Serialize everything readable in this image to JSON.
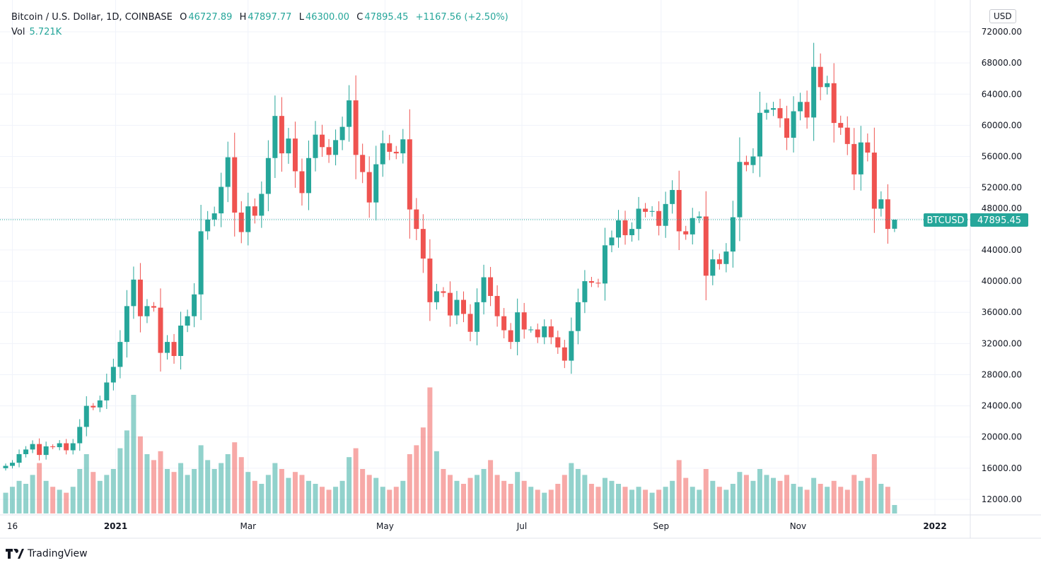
{
  "header": {
    "symbol": "Bitcoin / U.S. Dollar, 1D, COINBASE",
    "o_label": "O",
    "open": "46727.89",
    "h_label": "H",
    "high": "47897.77",
    "l_label": "L",
    "low": "46300.00",
    "c_label": "C",
    "close": "47895.45",
    "change": "+1167.56 (+2.50%)",
    "vol_label": "Vol",
    "vol_value": "5.721K"
  },
  "currency_button": "USD",
  "price_tag": {
    "symbol": "BTCUSD",
    "value": "47895.45"
  },
  "brand": "TradingView",
  "colors": {
    "up": "#26a69a",
    "down": "#ef5350",
    "grid": "#f0f3fa"
  },
  "chart_data": {
    "type": "candlestick",
    "title": "Bitcoin / U.S. Dollar, 1D, COINBASE",
    "interval_days": 3,
    "start_date": "2020-11-13",
    "first_open": 16000,
    "last_candle": {
      "open": 46727.89,
      "high": 47897.77,
      "low": 46300.0,
      "close": 47895.45
    },
    "ylim": [
      10000,
      74000
    ],
    "y_ticks": [
      "72000.00",
      "68000.00",
      "64000.00",
      "60000.00",
      "56000.00",
      "52000.00",
      "48000.00",
      "44000.00",
      "40000.00",
      "36000.00",
      "32000.00",
      "28000.00",
      "24000.00",
      "20000.00",
      "16000.00",
      "12000.00"
    ],
    "y_tick_values": [
      72000,
      68000,
      64000,
      60000,
      56000,
      52000,
      48000,
      44000,
      40000,
      36000,
      32000,
      28000,
      24000,
      20000,
      16000,
      12000
    ],
    "x_ticks": [
      {
        "label": "16",
        "day": 3
      },
      {
        "label": "2021",
        "day": 49
      },
      {
        "label": "Mar",
        "day": 108
      },
      {
        "label": "May",
        "day": 169
      },
      {
        "label": "Jul",
        "day": 230
      },
      {
        "label": "Sep",
        "day": 292
      },
      {
        "label": "Nov",
        "day": 353
      },
      {
        "label": "2022",
        "day": 414
      }
    ],
    "closes": [
      16300,
      16700,
      17800,
      18400,
      19100,
      17700,
      18800,
      18700,
      19200,
      18300,
      19200,
      21300,
      24000,
      23800,
      24700,
      27000,
      29000,
      32200,
      36800,
      40200,
      35500,
      36800,
      36600,
      30800,
      32200,
      30400,
      34300,
      35500,
      38300,
      46400,
      47900,
      48700,
      52100,
      55900,
      48800,
      46300,
      49600,
      48400,
      51200,
      55800,
      61200,
      56400,
      58300,
      54100,
      51300,
      55800,
      58800,
      57200,
      56200,
      58100,
      59800,
      63200,
      56200,
      54000,
      50100,
      55000,
      57700,
      56600,
      56400,
      58200,
      49200,
      46700,
      42900,
      37300,
      38700,
      38500,
      35600,
      37600,
      35800,
      33500,
      37300,
      40500,
      38100,
      35500,
      33700,
      32200,
      36000,
      33800,
      33800,
      32800,
      34200,
      32800,
      31500,
      29800,
      33600,
      37300,
      40000,
      39800,
      39700,
      44600,
      45600,
      47800,
      45900,
      46700,
      49300,
      48900,
      49000,
      47100,
      49900,
      51700,
      46400,
      46000,
      48100,
      48300,
      40700,
      42800,
      42200,
      43800,
      48200,
      55300,
      54900,
      56000,
      61600,
      62000,
      62200,
      60900,
      58400,
      61800,
      63000,
      61000,
      67500,
      64900,
      65400,
      60300,
      59700,
      57600,
      53700,
      57800,
      56500,
      49300,
      50500,
      46700,
      47895.45
    ],
    "volumes_k": [
      14,
      18,
      22,
      20,
      26,
      34,
      22,
      18,
      16,
      14,
      18,
      30,
      40,
      28,
      22,
      26,
      30,
      44,
      56,
      80,
      52,
      40,
      36,
      42,
      30,
      28,
      34,
      26,
      30,
      46,
      36,
      30,
      34,
      40,
      48,
      38,
      28,
      22,
      20,
      26,
      34,
      30,
      24,
      28,
      26,
      22,
      20,
      18,
      16,
      18,
      22,
      38,
      44,
      30,
      26,
      24,
      18,
      16,
      18,
      22,
      40,
      46,
      58,
      85,
      42,
      30,
      26,
      22,
      20,
      24,
      26,
      30,
      36,
      26,
      22,
      20,
      28,
      22,
      18,
      16,
      14,
      16,
      20,
      26,
      34,
      30,
      26,
      20,
      18,
      24,
      22,
      20,
      18,
      16,
      18,
      16,
      14,
      16,
      18,
      22,
      36,
      24,
      18,
      16,
      30,
      22,
      18,
      16,
      20,
      28,
      26,
      22,
      30,
      26,
      24,
      22,
      26,
      20,
      18,
      16,
      24,
      20,
      18,
      22,
      18,
      16,
      26,
      22,
      24,
      40,
      20,
      18,
      5.721
    ]
  }
}
